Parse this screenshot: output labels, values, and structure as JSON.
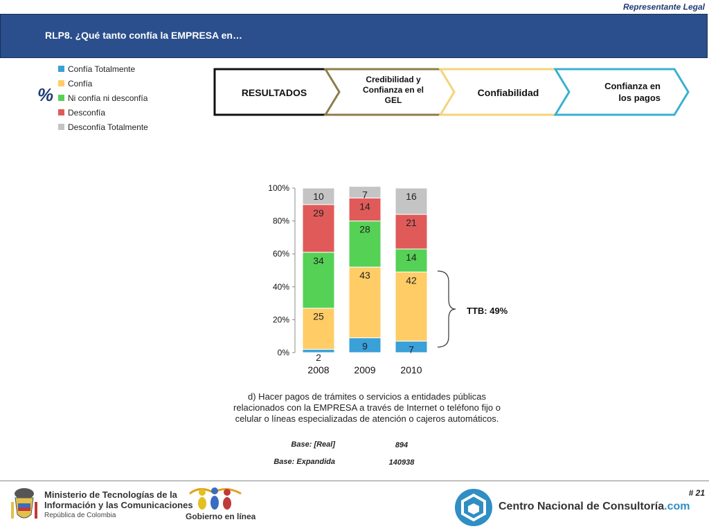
{
  "header": {
    "role": "Representante Legal",
    "title": "RLP8. ¿Qué tanto confía la EMPRESA en…"
  },
  "pct_symbol": "%",
  "legend": [
    {
      "label": "Confía Totalmente",
      "color": "#3aa0d8"
    },
    {
      "label": "Confía",
      "color": "#ffcc66"
    },
    {
      "label": "Ni confía ni desconfía",
      "color": "#55d155"
    },
    {
      "label": "Desconfía",
      "color": "#e05a5a"
    },
    {
      "label": "Desconfía Totalmente",
      "color": "#c4c4c4"
    }
  ],
  "nav_steps": [
    {
      "label": "RESULTADOS",
      "border": "#111111"
    },
    {
      "label": "Credibilidad y Confianza en el GEL",
      "border": "#8c7d4a"
    },
    {
      "label": "Confiabilidad",
      "border": "#f5d37a"
    },
    {
      "label": "Confianza en los pagos",
      "border": "#3ab0d0"
    }
  ],
  "chart_data": {
    "type": "bar",
    "stacked": true,
    "categories": [
      "2008",
      "2009",
      "2010"
    ],
    "series": [
      {
        "name": "Confía Totalmente",
        "color": "#3aa0d8",
        "values": [
          2,
          9,
          7
        ]
      },
      {
        "name": "Confía",
        "color": "#ffcc66",
        "values": [
          25,
          43,
          42
        ]
      },
      {
        "name": "Ni confía ni desconfía",
        "color": "#55d155",
        "values": [
          34,
          28,
          14
        ]
      },
      {
        "name": "Desconfía",
        "color": "#e05a5a",
        "values": [
          29,
          14,
          21
        ]
      },
      {
        "name": "Desconfía Totalmente",
        "color": "#c4c4c4",
        "values": [
          10,
          7,
          16
        ]
      }
    ],
    "yticks": [
      "0%",
      "20%",
      "40%",
      "60%",
      "80%",
      "100%"
    ],
    "ylim": [
      0,
      100
    ],
    "legend_position": "top-left",
    "annotation": "TTB: 49%"
  },
  "description": "d) Hacer pagos de trámites o servicios a entidades públicas relacionados con la EMPRESA a través de Internet o teléfono fijo o celular o líneas especializadas de atención o cajeros automáticos.",
  "bases": [
    {
      "label": "Base: [Real]",
      "value": "894"
    },
    {
      "label": "Base: Expandida",
      "value": "140938"
    }
  ],
  "footer": {
    "ministry_line1": "Ministerio de Tecnologías de la",
    "ministry_line2": "Información y las Comunicaciones",
    "ministry_line3": "República de Colombia",
    "gel": "Gobierno en línea",
    "cnc_name": "Centro Nacional de Consultoría",
    "cnc_suffix": ".com",
    "page": "# 21"
  }
}
